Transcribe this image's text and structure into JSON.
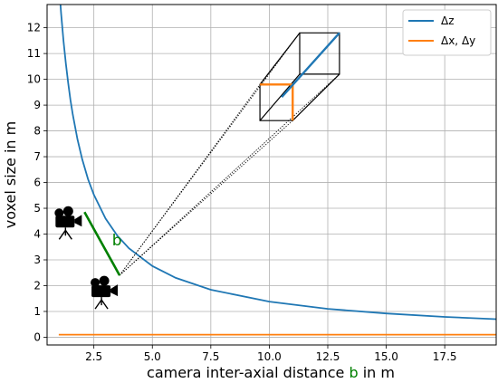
{
  "chart_data": {
    "type": "line",
    "title": "",
    "xlabel_parts": [
      "camera inter-axial distance ",
      "b",
      " in m"
    ],
    "ylabel": "voxel size in m",
    "xlim": [
      0.5,
      19.7
    ],
    "ylim": [
      -0.3,
      12.9
    ],
    "xticks": [
      2.5,
      5.0,
      7.5,
      10.0,
      12.5,
      15.0,
      17.5
    ],
    "xtick_labels": [
      "2.5",
      "5.0",
      "7.5",
      "10.0",
      "12.5",
      "15.0",
      "17.5"
    ],
    "yticks": [
      0,
      1,
      2,
      3,
      4,
      5,
      6,
      7,
      8,
      9,
      10,
      11,
      12
    ],
    "ytick_labels": [
      "0",
      "1",
      "2",
      "3",
      "4",
      "5",
      "6",
      "7",
      "8",
      "9",
      "10",
      "11",
      "12"
    ],
    "grid": true,
    "legend_position": "top-right",
    "series": [
      {
        "name": "Δz",
        "color": "#1f77b4",
        "x": [
          1.0,
          1.1,
          1.2,
          1.3,
          1.4,
          1.5,
          1.6,
          1.8,
          2.0,
          2.25,
          2.5,
          3.0,
          3.5,
          4.0,
          5.0,
          6.0,
          7.5,
          10.0,
          12.5,
          15.0,
          17.5,
          19.7
        ],
        "y": [
          13.8,
          12.55,
          11.5,
          10.62,
          9.86,
          9.2,
          8.63,
          7.67,
          6.9,
          6.13,
          5.52,
          4.6,
          3.94,
          3.45,
          2.76,
          2.3,
          1.84,
          1.38,
          1.1,
          0.92,
          0.79,
          0.7
        ]
      },
      {
        "name": "Δx, Δy",
        "color": "#ff7f0e",
        "x": [
          1.0,
          19.7
        ],
        "y": [
          0.1,
          0.1
        ]
      }
    ],
    "annotations": {
      "baseline_label": "b",
      "baseline_color": "#008000",
      "baseline_start": [
        2.1,
        4.85
      ],
      "baseline_end": [
        3.6,
        2.4
      ],
      "rays_apex": [
        3.6,
        2.4
      ],
      "box_far_back": [
        [
          11.3,
          11.8
        ],
        [
          13.0,
          11.8
        ],
        [
          13.0,
          10.2
        ],
        [
          11.3,
          10.2
        ]
      ],
      "box_front": [
        [
          9.6,
          9.8
        ],
        [
          11.0,
          9.8
        ],
        [
          11.0,
          8.4
        ],
        [
          9.6,
          8.4
        ]
      ],
      "camera_icons": [
        "video-camera-icon",
        "video-camera-icon"
      ]
    }
  }
}
